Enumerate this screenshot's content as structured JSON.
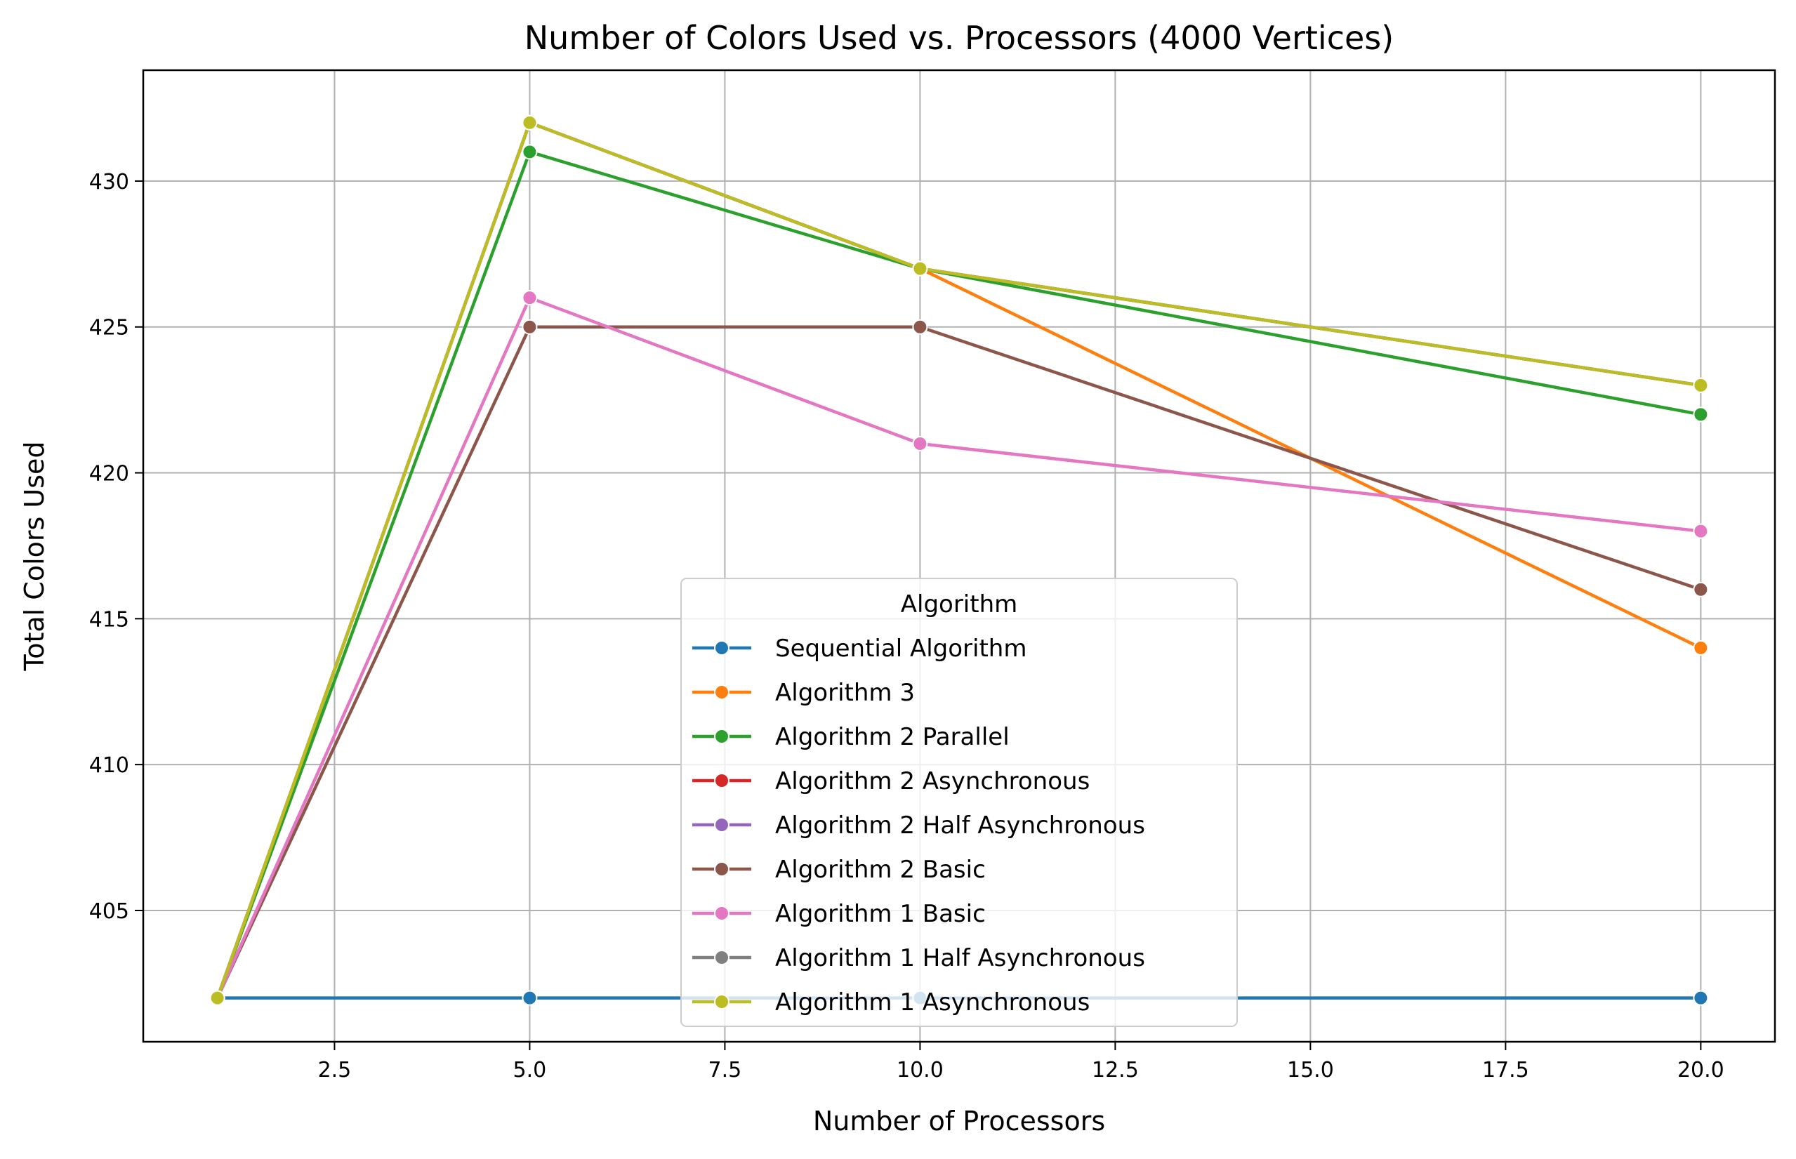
{
  "chart_data": {
    "type": "line",
    "title": "Number of Colors Used vs. Processors (4000 Vertices)",
    "xlabel": "Number of Processors",
    "ylabel": "Total Colors Used",
    "xlim": [
      0.05,
      20.95
    ],
    "ylim": [
      400.5,
      433.8
    ],
    "xticks": [
      2.5,
      5.0,
      7.5,
      10.0,
      12.5,
      15.0,
      17.5,
      20.0
    ],
    "xtick_labels": [
      "2.5",
      "5.0",
      "7.5",
      "10.0",
      "12.5",
      "15.0",
      "17.5",
      "20.0"
    ],
    "yticks": [
      405,
      410,
      415,
      420,
      425,
      430
    ],
    "ytick_labels": [
      "405",
      "410",
      "415",
      "420",
      "425",
      "430"
    ],
    "grid": true,
    "legend": {
      "title": "Algorithm",
      "placement": "lower-center"
    },
    "x": [
      1,
      5,
      10,
      20
    ],
    "series": [
      {
        "name": "Sequential Algorithm",
        "color": "#1f77b4",
        "values": [
          402,
          402,
          402,
          402
        ]
      },
      {
        "name": "Algorithm 3",
        "color": "#ff7f0e",
        "values": [
          402,
          432,
          427,
          414
        ]
      },
      {
        "name": "Algorithm 2 Parallel",
        "color": "#2ca02c",
        "values": [
          402,
          431,
          427,
          422
        ]
      },
      {
        "name": "Algorithm 2 Asynchronous",
        "color": "#d62728",
        "values": [
          402,
          432,
          427,
          423
        ]
      },
      {
        "name": "Algorithm 2 Half Asynchronous",
        "color": "#9467bd",
        "values": [
          402,
          432,
          427,
          423
        ]
      },
      {
        "name": "Algorithm 2 Basic",
        "color": "#8c564b",
        "values": [
          402,
          425,
          425,
          416
        ]
      },
      {
        "name": "Algorithm 1 Basic",
        "color": "#e377c2",
        "values": [
          402,
          426,
          421,
          418
        ]
      },
      {
        "name": "Algorithm 1 Half Asynchronous",
        "color": "#7f7f7f",
        "values": [
          402,
          432,
          427,
          423
        ]
      },
      {
        "name": "Algorithm 1 Asynchronous",
        "color": "#bcbd22",
        "values": [
          402,
          432,
          427,
          423
        ]
      }
    ]
  }
}
